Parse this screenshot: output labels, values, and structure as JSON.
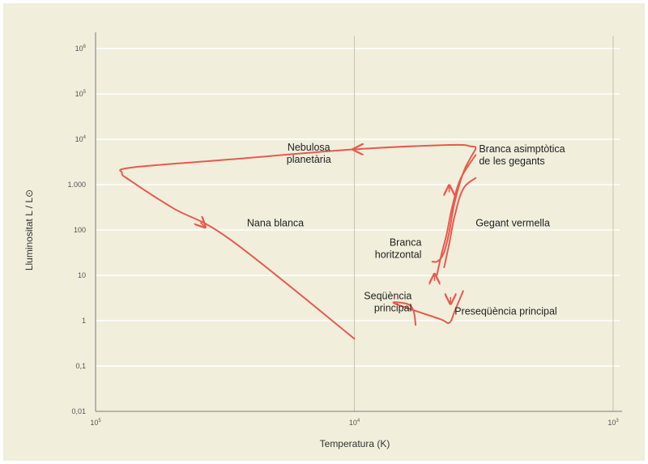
{
  "chart_data": {
    "type": "line",
    "title": "",
    "xlabel": "Temperatura (K)",
    "ylabel": "Lluminositat L / L⊙",
    "x_scale": "log-reversed",
    "y_scale": "log",
    "xlim": [
      100000,
      1000
    ],
    "ylim": [
      0.01,
      1000000
    ],
    "grid": true,
    "x_ticks": [
      {
        "value": 100000,
        "base": "10",
        "exp": "5"
      },
      {
        "value": 10000,
        "base": "10",
        "exp": "4"
      },
      {
        "value": 1000,
        "base": "10",
        "exp": "3"
      }
    ],
    "y_ticks": [
      {
        "value": 1000000,
        "base": "10",
        "exp": "6",
        "label": ""
      },
      {
        "value": 100000,
        "base": "10",
        "exp": "5",
        "label": ""
      },
      {
        "value": 10000,
        "base": "10",
        "exp": "4",
        "label": ""
      },
      {
        "value": 1000,
        "base": "",
        "exp": "",
        "label": "1.000"
      },
      {
        "value": 100,
        "base": "",
        "exp": "",
        "label": "100"
      },
      {
        "value": 10,
        "base": "",
        "exp": "",
        "label": "10"
      },
      {
        "value": 1,
        "base": "",
        "exp": "",
        "label": "1"
      },
      {
        "value": 0.1,
        "base": "",
        "exp": "",
        "label": "0,1"
      },
      {
        "value": 0.01,
        "base": "",
        "exp": "",
        "label": "0,01"
      }
    ],
    "color": "#e85a4e",
    "series": [
      {
        "points": [
          [
            5800,
            0.8
          ],
          [
            5900,
            1.6
          ],
          [
            6200,
            2.3
          ],
          [
            7000,
            2.4
          ],
          [
            4700,
            1.1
          ],
          [
            4300,
            0.9
          ],
          [
            4100,
            1.6
          ],
          [
            3800,
            4.5
          ]
        ]
      },
      {
        "points": [
          [
            5000,
            20
          ],
          [
            4800,
            20
          ],
          [
            4600,
            25
          ],
          [
            4450,
            40
          ],
          [
            4300,
            90
          ],
          [
            4100,
            400
          ],
          [
            3800,
            1800
          ],
          [
            3550,
            4000
          ],
          [
            3400,
            6300
          ],
          [
            3550,
            7000
          ],
          [
            4300,
            7500
          ],
          [
            10000,
            6000
          ],
          [
            30000,
            3600
          ],
          [
            72000,
            2400
          ],
          [
            79000,
            1800
          ],
          [
            73000,
            1200
          ],
          [
            50000,
            300
          ],
          [
            30000,
            60
          ],
          [
            10000,
            0.4
          ]
        ]
      },
      {
        "points": [
          [
            4800,
            10
          ],
          [
            4600,
            30
          ],
          [
            4400,
            80
          ],
          [
            4200,
            300
          ],
          [
            3900,
            1300
          ],
          [
            3400,
            4500
          ]
        ]
      },
      {
        "points": [
          [
            4500,
            15
          ],
          [
            4300,
            50
          ],
          [
            4100,
            200
          ],
          [
            3800,
            800
          ],
          [
            3400,
            1400
          ]
        ]
      }
    ],
    "arrows": [
      {
        "at": [
          4300,
          900
        ],
        "direction": "up"
      },
      {
        "at": [
          4900,
          10
        ],
        "direction": "up"
      },
      {
        "at": [
          4250,
          2.5
        ],
        "direction": "down"
      },
      {
        "at": [
          10000,
          6000
        ],
        "direction": "left"
      },
      {
        "at": [
          38000,
          120
        ],
        "direction": "down-right"
      }
    ],
    "annotations": [
      {
        "lines": [
          "Nebulosa",
          "planetària"
        ],
        "at": [
          15000,
          5600
        ],
        "align": "middle"
      },
      {
        "lines": [
          "Branca asimptòtica",
          "de les gegants"
        ],
        "at": [
          3300,
          5200
        ],
        "align": "start"
      },
      {
        "lines": [
          "Gegant vermella"
        ],
        "at": [
          3400,
          120
        ],
        "align": "start"
      },
      {
        "lines": [
          "Nana blanca"
        ],
        "at": [
          26000,
          120
        ],
        "align": "start"
      },
      {
        "lines": [
          "Branca",
          "horitzontal"
        ],
        "at": [
          5500,
          45
        ],
        "align": "end"
      },
      {
        "lines": [
          "Seqüència",
          "principal"
        ],
        "at": [
          6000,
          3.0
        ],
        "align": "end"
      },
      {
        "lines": [
          "Preseqüència principal"
        ],
        "at": [
          4100,
          1.35
        ],
        "align": "start"
      }
    ]
  }
}
